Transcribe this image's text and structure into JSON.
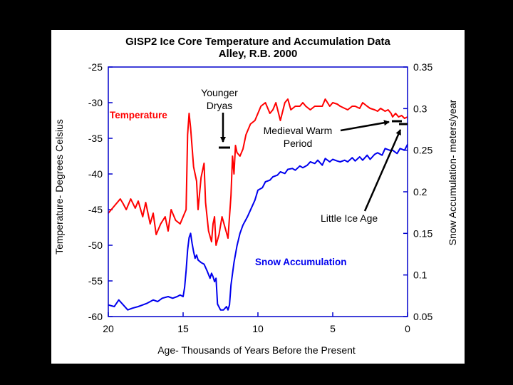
{
  "chart_data": {
    "type": "line",
    "title": "GISP2 Ice Core Temperature and Accumulation Data",
    "subtitle": "Alley, R.B. 2000",
    "xlabel": "Age- Thousands of Years Before the Present",
    "ylabel_left": "Temperature- Degrees Celsius",
    "ylabel_right": "Snow Accumulation- meters/year",
    "xlim": [
      20,
      0
    ],
    "ylim_left": [
      -60,
      -25
    ],
    "ylim_right": [
      0.05,
      0.35
    ],
    "x_ticks": [
      "20",
      "15",
      "10",
      "5",
      "0"
    ],
    "y_ticks_left": [
      "-25",
      "-30",
      "-35",
      "-40",
      "-45",
      "-50",
      "-55",
      "-60"
    ],
    "y_ticks_right": [
      "0.35",
      "0.3",
      "0.25",
      "0.2",
      "0.15",
      "0.1",
      "0.05"
    ],
    "series": [
      {
        "name": "Temperature",
        "axis": "left",
        "color": "#ff0000",
        "x": [
          20,
          19.6,
          19.2,
          19,
          18.8,
          18.5,
          18.2,
          18,
          17.7,
          17.5,
          17.2,
          17,
          16.8,
          16.5,
          16.2,
          16,
          15.8,
          15.5,
          15.2,
          15,
          14.8,
          14.7,
          14.6,
          14.5,
          14.3,
          14.1,
          14,
          13.8,
          13.6,
          13.5,
          13.3,
          13.1,
          13,
          12.9,
          12.8,
          12.6,
          12.4,
          12.2,
          12,
          11.8,
          11.7,
          11.6,
          11.5,
          11.4,
          11.2,
          11,
          10.8,
          10.5,
          10.2,
          10,
          9.8,
          9.5,
          9.2,
          9,
          8.8,
          8.5,
          8.2,
          8,
          7.8,
          7.5,
          7.2,
          7,
          6.8,
          6.5,
          6.2,
          6,
          5.7,
          5.5,
          5.2,
          5,
          4.7,
          4.5,
          4.2,
          4,
          3.7,
          3.5,
          3.2,
          3,
          2.7,
          2.5,
          2.2,
          2,
          1.8,
          1.5,
          1.3,
          1.1,
          1,
          0.8,
          0.6,
          0.4,
          0.2,
          0
        ],
        "values": [
          -45.5,
          -44.5,
          -43.5,
          -44.2,
          -45,
          -43.5,
          -44.8,
          -43.8,
          -46,
          -44,
          -47,
          -45.5,
          -48.5,
          -47,
          -46,
          -48,
          -45,
          -46.5,
          -47,
          -46,
          -45,
          -34.5,
          -31.5,
          -33.5,
          -39,
          -41,
          -45,
          -40.5,
          -38.5,
          -44,
          -48,
          -49.5,
          -47,
          -46,
          -50,
          -48.5,
          -46,
          -47.5,
          -49,
          -43,
          -37.5,
          -40,
          -36,
          -37,
          -37.5,
          -36.5,
          -34.5,
          -33,
          -32.5,
          -31.5,
          -30.5,
          -30,
          -31.5,
          -31,
          -30,
          -32.5,
          -30,
          -29.5,
          -31,
          -30.5,
          -30.5,
          -30,
          -30.5,
          -31,
          -30.5,
          -30.5,
          -30.5,
          -29.5,
          -30.5,
          -30,
          -30.2,
          -30.5,
          -30.8,
          -31,
          -30.5,
          -30.5,
          -30.8,
          -30,
          -30.5,
          -30.8,
          -31,
          -31.2,
          -30.8,
          -31.2,
          -31,
          -31.5,
          -32,
          -31.5,
          -32,
          -31.8,
          -32.2,
          -32
        ]
      },
      {
        "name": "Snow Accumulation",
        "axis": "right",
        "color": "#0000ee",
        "x": [
          20,
          19.6,
          19.3,
          19,
          18.7,
          18.4,
          18,
          17.7,
          17.4,
          17,
          16.7,
          16.4,
          16,
          15.7,
          15.4,
          15.2,
          15,
          14.9,
          14.8,
          14.7,
          14.6,
          14.5,
          14.4,
          14.3,
          14.2,
          14.1,
          14,
          13.8,
          13.6,
          13.4,
          13.2,
          13.1,
          13,
          12.9,
          12.8,
          12.7,
          12.5,
          12.3,
          12.1,
          12,
          11.9,
          11.8,
          11.6,
          11.4,
          11.2,
          11,
          10.7,
          10.5,
          10.2,
          10,
          9.7,
          9.5,
          9.2,
          9,
          8.7,
          8.5,
          8.2,
          8,
          7.7,
          7.5,
          7.2,
          7,
          6.7,
          6.5,
          6.2,
          6,
          5.7,
          5.5,
          5.2,
          5,
          4.7,
          4.5,
          4.2,
          4,
          3.7,
          3.5,
          3.2,
          3,
          2.7,
          2.5,
          2.2,
          2,
          1.7,
          1.5,
          1.2,
          1,
          0.7,
          0.5,
          0.2,
          0
        ],
        "values": [
          0.064,
          0.062,
          0.07,
          0.064,
          0.058,
          0.06,
          0.062,
          0.064,
          0.066,
          0.07,
          0.068,
          0.072,
          0.074,
          0.072,
          0.074,
          0.076,
          0.074,
          0.085,
          0.105,
          0.13,
          0.145,
          0.15,
          0.138,
          0.128,
          0.12,
          0.124,
          0.118,
          0.115,
          0.113,
          0.105,
          0.096,
          0.102,
          0.098,
          0.092,
          0.096,
          0.065,
          0.058,
          0.058,
          0.062,
          0.058,
          0.064,
          0.088,
          0.115,
          0.135,
          0.15,
          0.16,
          0.17,
          0.178,
          0.19,
          0.202,
          0.205,
          0.212,
          0.214,
          0.218,
          0.22,
          0.224,
          0.222,
          0.227,
          0.228,
          0.226,
          0.231,
          0.229,
          0.232,
          0.236,
          0.234,
          0.238,
          0.232,
          0.24,
          0.236,
          0.239,
          0.237,
          0.236,
          0.238,
          0.236,
          0.241,
          0.237,
          0.242,
          0.238,
          0.244,
          0.239,
          0.245,
          0.247,
          0.244,
          0.252,
          0.25,
          0.25,
          0.246,
          0.252,
          0.25,
          0.257
        ]
      }
    ],
    "annotations": [
      {
        "text": "Temperature",
        "color": "#ff0000"
      },
      {
        "text": "Snow Accumulation",
        "color": "#0000ee"
      },
      {
        "text_lines": [
          "Younger",
          "Dryas"
        ],
        "color": "#000000"
      },
      {
        "text_lines": [
          "Medieval Warm",
          "Period"
        ],
        "color": "#000000"
      },
      {
        "text": "Little Ice Age",
        "color": "#000000"
      }
    ]
  }
}
